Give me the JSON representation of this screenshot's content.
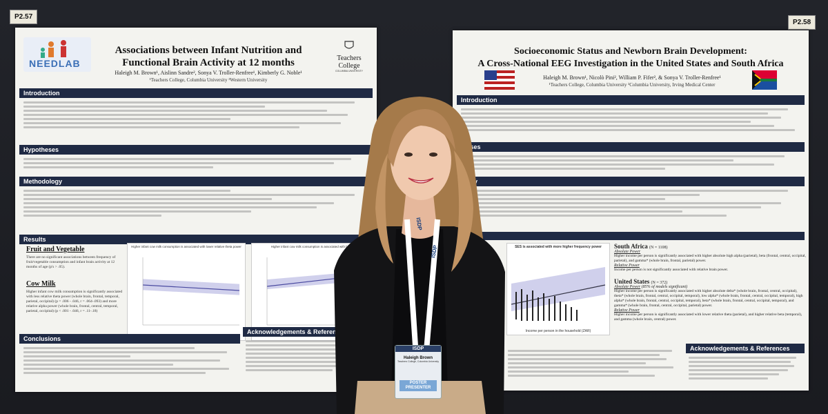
{
  "left_poster": {
    "tag": "P2.57",
    "title_line1": "Associations between Infant Nutrition and",
    "title_line2": "Functional Brain Activity at 12 months",
    "authors": "Haleigh M. Brown¹, Aislinn Sandre², Sonya V. Troller-Renfree¹, Kimberly G. Noble¹",
    "affiliations": "¹Teachers College, Columbia University      ²Western University",
    "logo_text": "NEEDLAB",
    "college_line1": "Teachers",
    "college_line2": "College",
    "college_line3": "COLUMBIA UNIVERSITY",
    "sections": {
      "intro": "Introduction",
      "hypotheses": "Hypotheses",
      "methodology": "Methodology",
      "results": "Results",
      "conclusions": "Conclusions",
      "ack": "Acknowledgements & References"
    },
    "results": {
      "fruit_heading": "Fruit and Vegetable",
      "fruit_text": "There are no significant associations between frequency of fruit/vegetable consumption and infant brain activity at 12 months of age (p's > .05).",
      "cow_heading": "Cow Milk",
      "cow_text": "Higher infant cow milk consumption is significantly associated with less relative theta power (whole brain, frontal, temporal, parietal, occipital) (p = .006 - .046, r = .064-.093) and more relative alpha power (whole brain, frontal, central, temporal, parietal, occipital) (p < .001 - .046, r = .11-.18)",
      "plot1_title": "Higher infant cow milk consumption is associated with lower relative theta power",
      "plot2_title": "Higher infant cow milk consumption is associated with hig"
    }
  },
  "right_poster": {
    "tag": "P2.58",
    "title_line1": "Socioeconomic Status and Newborn Brain Development:",
    "title_line2": "A Cross-National EEG Investigation in the United States and South Africa",
    "authors": "Haleigh M. Brown¹, Nicolò Pini², William P. Fifer², & Sonya V. Troller-Renfree¹",
    "affiliations": "¹Teachers College, Columbia University      ²Columbia University, Irving Medical Center",
    "sections": {
      "intro": "Introduction",
      "hypotheses": "theses",
      "methodology": "ology",
      "ack": "Acknowledgements & References"
    },
    "results": {
      "plot_title": "SES is associated with more higher frequency power",
      "plot_xlabel": "Income per person in the household (ZAR)",
      "sa_heading": "South Africa",
      "sa_n": "(N = 1108)",
      "sa_abs": "Absolute Power",
      "sa_abs_text": "Higher income per person is significantly associated with higher absolute high alpha (parietal), beta (frontal, central, occipital, parietal), and gamma* (whole brain, frontal, parietal) power.",
      "sa_rel": "Relative Power",
      "sa_rel_text": "Income per person is not significantly associated with relative brain power.",
      "us_heading": "United States",
      "us_n": "(N = 372)",
      "us_abs": "Absolute Power",
      "us_abs_note": "(85% of models significant)",
      "us_abs_text": "Higher income per person is significantly associated with higher absolute delta* (whole brain, frontal, central, occipital), theta* (whole brain, frontal, central, occipital, temporal), low alpha* (whole brain, frontal, central, occipital, temporal), high alpha* (whole brain, frontal, central, occipital, temporal), beta* (whole brain, frontal, central, occipital, temporal), and gamma* (whole brain, frontal, central, occipital, parietal) power.",
      "us_rel": "Relative Power",
      "us_rel_text": "Higher income per person is significantly associated with lower relative theta (parietal), and higher relative beta (temporal), and gamma (whole brain, central) power."
    }
  },
  "badge": {
    "org": "ISDP",
    "name": "Haleigh Brown",
    "affiliation": "Teachers College, Columbia University",
    "role_line1": "POSTER",
    "role_line2": "PRESENTER",
    "lanyard": "ISDP"
  },
  "colors": {
    "section_header": "#1f2a44",
    "board": "#1c1d22",
    "poster_bg": "#f3f3ef",
    "lanyard": "#ffffff",
    "badge_role": "#7aa7d6"
  }
}
